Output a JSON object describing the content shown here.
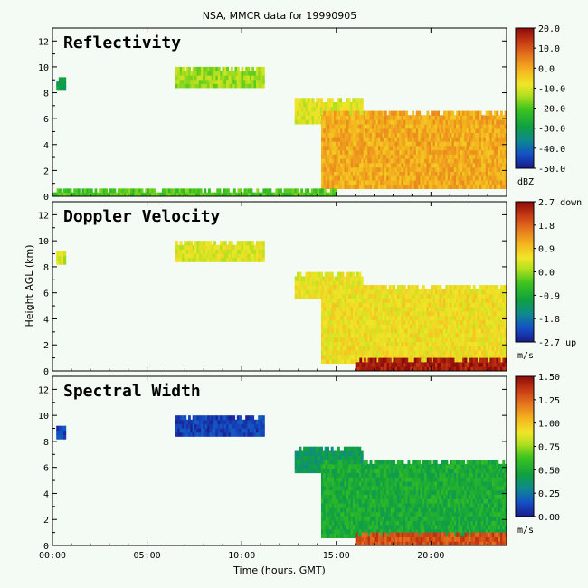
{
  "chart_data": {
    "type": "heatmap",
    "title": "NSA, MMCR data for 19990905",
    "xlabel": "Time (hours, GMT)",
    "ylabel": "Height AGL (km)",
    "xlim": [
      0,
      24
    ],
    "ylim": [
      0,
      13
    ],
    "x_ticks": [
      0,
      5,
      10,
      15,
      20
    ],
    "x_tick_labels": [
      "00:00",
      "05:00",
      "10:00",
      "15:00",
      "20:00"
    ],
    "y_ticks": [
      0,
      2,
      4,
      6,
      8,
      10,
      12
    ],
    "y_tick_labels": [
      "0",
      "2",
      "4",
      "6",
      "8",
      "10",
      "12"
    ],
    "panels": [
      {
        "name": "Reflectivity",
        "colorbar": {
          "range": [
            -50,
            20
          ],
          "tick_labels": [
            "20.0",
            "10.0",
            "0.0",
            "-10.0",
            "-20.0",
            "-30.0",
            "-40.0",
            "-50.0"
          ],
          "unit": "dBZ"
        },
        "features": [
          {
            "t0": 0.2,
            "t1": 0.7,
            "h0": 8.2,
            "h1": 9.2,
            "value": -30
          },
          {
            "t0": 6.5,
            "t1": 11.2,
            "h0": 8.4,
            "h1": 10.0,
            "value": -15
          },
          {
            "t0": 12.8,
            "t1": 16.4,
            "h0": 5.6,
            "h1": 7.6,
            "value": -10
          },
          {
            "t0": 14.2,
            "t1": 24.0,
            "h0": 0.6,
            "h1": 6.6,
            "value": 0
          },
          {
            "t0": 0.0,
            "t1": 15.0,
            "h0": 0.0,
            "h1": 0.6,
            "value": -20
          }
        ]
      },
      {
        "name": "Doppler Velocity",
        "colorbar": {
          "range": [
            -2.7,
            2.7
          ],
          "tick_labels": [
            "2.7 down",
            "1.8",
            "0.9",
            "0.0",
            "-0.9",
            "-1.8",
            "-2.7 up"
          ],
          "unit": "m/s"
        },
        "features": [
          {
            "t0": 0.2,
            "t1": 0.7,
            "h0": 8.2,
            "h1": 9.2,
            "value": 0.3
          },
          {
            "t0": 6.5,
            "t1": 11.2,
            "h0": 8.4,
            "h1": 10.0,
            "value": 0.4
          },
          {
            "t0": 12.8,
            "t1": 16.4,
            "h0": 5.6,
            "h1": 7.6,
            "value": 0.5
          },
          {
            "t0": 14.2,
            "t1": 24.0,
            "h0": 0.6,
            "h1": 6.6,
            "value": 0.6
          },
          {
            "t0": 16.0,
            "t1": 24.0,
            "h0": 0.0,
            "h1": 1.0,
            "value": 2.5
          }
        ]
      },
      {
        "name": "Spectral Width",
        "colorbar": {
          "range": [
            0,
            1.5
          ],
          "tick_labels": [
            "1.50",
            "1.25",
            "1.00",
            "0.75",
            "0.50",
            "0.25",
            "0.00"
          ],
          "unit": "m/s"
        },
        "features": [
          {
            "t0": 0.2,
            "t1": 0.7,
            "h0": 8.2,
            "h1": 9.2,
            "value": 0.1
          },
          {
            "t0": 6.5,
            "t1": 11.2,
            "h0": 8.4,
            "h1": 10.0,
            "value": 0.1
          },
          {
            "t0": 12.8,
            "t1": 16.4,
            "h0": 5.6,
            "h1": 7.6,
            "value": 0.4
          },
          {
            "t0": 14.2,
            "t1": 24.0,
            "h0": 0.6,
            "h1": 6.6,
            "value": 0.5
          },
          {
            "t0": 16.0,
            "t1": 24.0,
            "h0": 0.0,
            "h1": 1.0,
            "value": 1.3
          }
        ]
      }
    ]
  }
}
